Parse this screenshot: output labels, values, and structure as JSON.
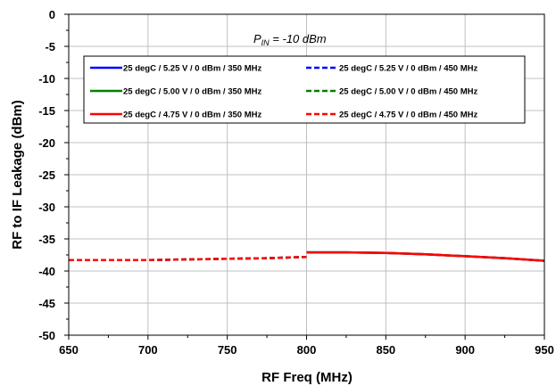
{
  "chart_data": {
    "type": "line",
    "title": "",
    "xlabel": "RF  Freq (MHz)",
    "ylabel": "RF to IF Leakage (dBm)",
    "xlim": [
      650,
      950
    ],
    "ylim": [
      -50,
      0
    ],
    "xticks": [
      650,
      700,
      750,
      800,
      850,
      900,
      950
    ],
    "yticks": [
      0,
      -5,
      -10,
      -15,
      -20,
      -25,
      -30,
      -35,
      -40,
      -45,
      -50
    ],
    "grid": true,
    "legend_position": "top",
    "annotation": {
      "main": "P",
      "sub": "IN",
      "rest": " = -10 dBm"
    },
    "series": [
      {
        "name": "25 degC / 5.25 V / 0 dBm / 350 MHz",
        "color": "#0000ff",
        "dash": "solid",
        "x": [
          800,
          825,
          850,
          875,
          900,
          925,
          950
        ],
        "y": [
          -37.1,
          -37.1,
          -37.2,
          -37.4,
          -37.7,
          -38.0,
          -38.4
        ]
      },
      {
        "name": "25 degC / 5.25 V / 0 dBm / 450 MHz",
        "color": "#0000ff",
        "dash": "dashed",
        "x": [
          650,
          675,
          700,
          725,
          750,
          775,
          800
        ],
        "y": [
          -38.3,
          -38.3,
          -38.3,
          -38.2,
          -38.1,
          -38.0,
          -37.8
        ]
      },
      {
        "name": "25 degC / 5.00 V / 0 dBm / 350 MHz",
        "color": "#008000",
        "dash": "solid",
        "x": [
          800,
          825,
          850,
          875,
          900,
          925,
          950
        ],
        "y": [
          -37.1,
          -37.1,
          -37.2,
          -37.4,
          -37.7,
          -38.0,
          -38.4
        ]
      },
      {
        "name": "25 degC / 5.00 V / 0 dBm / 450 MHz",
        "color": "#008000",
        "dash": "dashed",
        "x": [
          650,
          675,
          700,
          725,
          750,
          775,
          800
        ],
        "y": [
          -38.3,
          -38.3,
          -38.3,
          -38.2,
          -38.1,
          -38.0,
          -37.8
        ]
      },
      {
        "name": "25 degC / 4.75 V / 0 dBm / 350 MHz",
        "color": "#ff0000",
        "dash": "solid",
        "x": [
          800,
          825,
          850,
          875,
          900,
          925,
          950
        ],
        "y": [
          -37.1,
          -37.1,
          -37.2,
          -37.4,
          -37.7,
          -38.0,
          -38.4
        ]
      },
      {
        "name": "25 degC / 4.75 V / 0 dBm / 450 MHz",
        "color": "#ff0000",
        "dash": "dashed",
        "x": [
          650,
          675,
          700,
          725,
          750,
          775,
          800
        ],
        "y": [
          -38.3,
          -38.3,
          -38.3,
          -38.2,
          -38.1,
          -38.0,
          -37.8
        ]
      }
    ]
  }
}
